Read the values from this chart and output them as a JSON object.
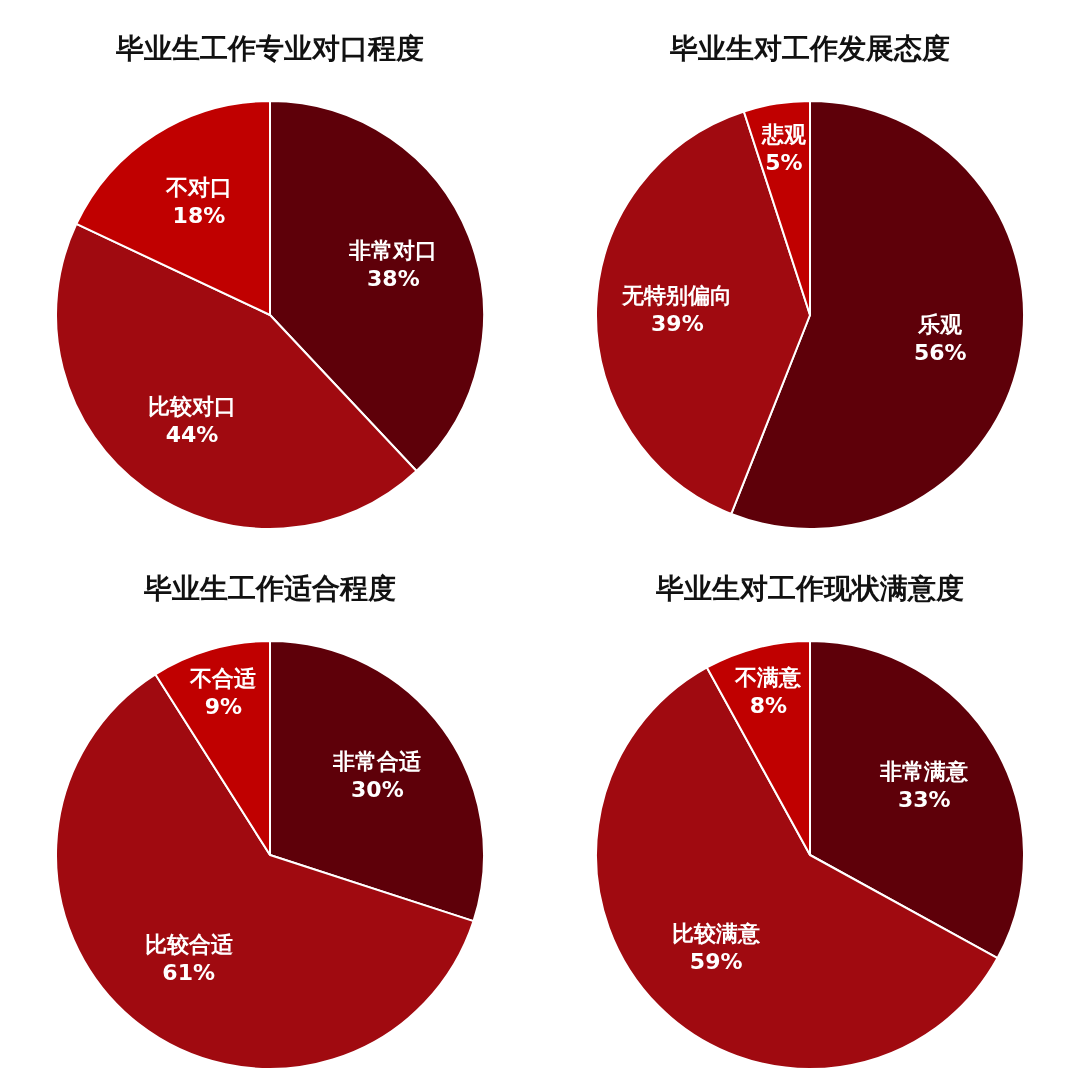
{
  "chart_data": [
    {
      "type": "pie",
      "title": "毕业生工作专业对口程度",
      "categories": [
        "非常对口",
        "比较对口",
        "不对口"
      ],
      "values": [
        38,
        44,
        18
      ],
      "value_labels": [
        "38%",
        "44%",
        "18%"
      ],
      "colors": [
        "#5e0009",
        "#a00a10",
        "#c00000"
      ],
      "legend": false
    },
    {
      "type": "pie",
      "title": "毕业生对工作发展态度",
      "categories": [
        "乐观",
        "无特别偏向",
        "悲观"
      ],
      "values": [
        56,
        39,
        5
      ],
      "value_labels": [
        "56%",
        "39%",
        "5%"
      ],
      "colors": [
        "#5e0009",
        "#a00a10",
        "#c00000"
      ],
      "legend": false
    },
    {
      "type": "pie",
      "title": "毕业生工作适合程度",
      "categories": [
        "非常合适",
        "比较合适",
        "不合适"
      ],
      "values": [
        30,
        61,
        9
      ],
      "value_labels": [
        "30%",
        "61%",
        "9%"
      ],
      "colors": [
        "#5e0009",
        "#a00a10",
        "#c00000"
      ],
      "legend": false
    },
    {
      "type": "pie",
      "title": "毕业生对工作现状满意度",
      "categories": [
        "非常满意",
        "比较满意",
        "不满意"
      ],
      "values": [
        33,
        59,
        8
      ],
      "value_labels": [
        "33%",
        "59%",
        "8%"
      ],
      "colors": [
        "#5e0009",
        "#a00a10",
        "#c00000"
      ],
      "legend": false
    }
  ]
}
